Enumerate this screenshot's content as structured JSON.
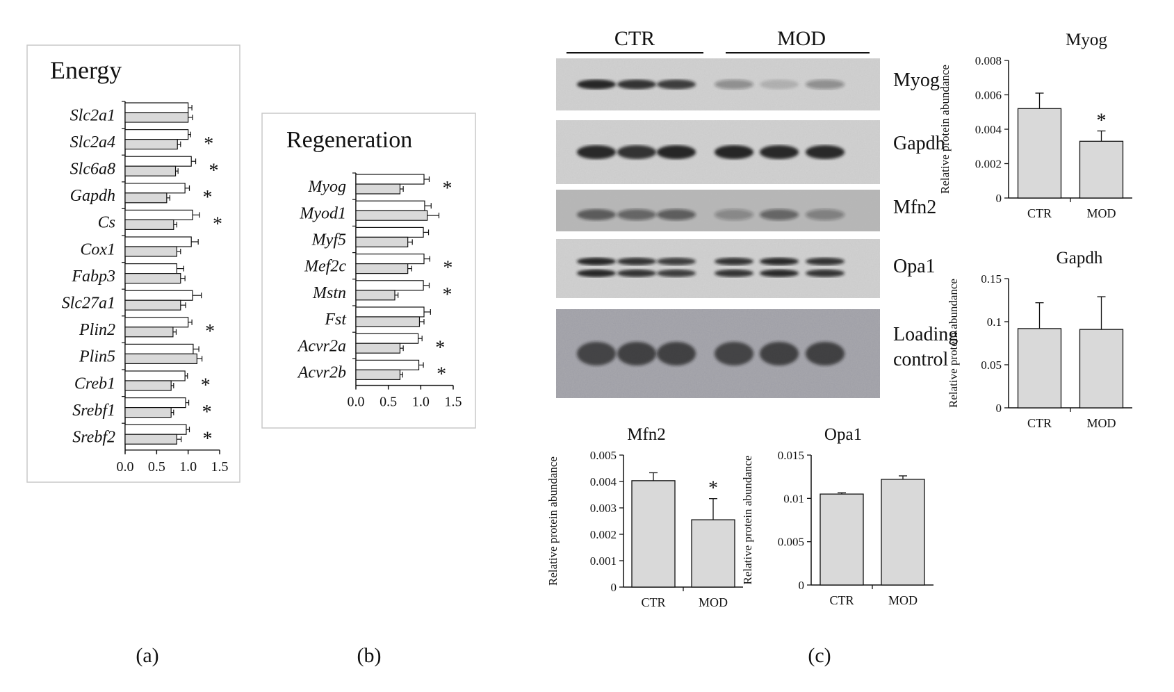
{
  "panel_labels": [
    "(a)",
    "(b)",
    "(c)"
  ],
  "chart_data": [
    {
      "id": "energy",
      "type": "bar",
      "orientation": "horizontal",
      "title": "Energy",
      "categories": [
        "Slc2a1",
        "Slc2a4",
        "Slc6a8",
        "Gapdh",
        "Cs",
        "Cox1",
        "Fabp3",
        "Slc27a1",
        "Plin2",
        "Plin5",
        "Creb1",
        "Srebf1",
        "Srebf2"
      ],
      "series": [
        {
          "color": "#ffffff",
          "values": [
            1.0,
            1.0,
            1.05,
            0.95,
            1.07,
            1.05,
            0.82,
            1.07,
            1.0,
            1.08,
            0.95,
            0.96,
            0.97
          ],
          "errors": [
            0.06,
            0.04,
            0.07,
            0.07,
            0.11,
            0.11,
            0.11,
            0.14,
            0.06,
            0.09,
            0.04,
            0.05,
            0.05
          ]
        },
        {
          "color": "#d9d9d9",
          "values": [
            1.0,
            0.83,
            0.8,
            0.66,
            0.77,
            0.82,
            0.88,
            0.88,
            0.76,
            1.14,
            0.73,
            0.73,
            0.82
          ],
          "errors": [
            0.07,
            0.05,
            0.04,
            0.05,
            0.05,
            0.06,
            0.07,
            0.08,
            0.05,
            0.08,
            0.04,
            0.04,
            0.07
          ]
        }
      ],
      "significant": [
        "",
        "*",
        "*",
        "*",
        "*",
        "",
        "",
        "",
        "*",
        "",
        "*",
        "*",
        "*"
      ],
      "xlim": [
        0,
        1.5
      ],
      "xticks": [
        "0.0",
        "0.5",
        "1.0",
        "1.5"
      ]
    },
    {
      "id": "regeneration",
      "type": "bar",
      "orientation": "horizontal",
      "title": "Regeneration",
      "categories": [
        "Myog",
        "Myod1",
        "Myf5",
        "Mef2c",
        "Mstn",
        "Fst",
        "Acvr2a",
        "Acvr2b"
      ],
      "series": [
        {
          "color": "#ffffff",
          "values": [
            1.05,
            1.06,
            1.04,
            1.05,
            1.04,
            1.05,
            0.96,
            0.97
          ],
          "errors": [
            0.08,
            0.1,
            0.08,
            0.09,
            0.09,
            0.1,
            0.06,
            0.07
          ]
        },
        {
          "color": "#d9d9d9",
          "values": [
            0.68,
            1.1,
            0.8,
            0.8,
            0.6,
            0.98,
            0.68,
            0.68
          ],
          "errors": [
            0.05,
            0.18,
            0.07,
            0.06,
            0.05,
            0.07,
            0.05,
            0.04
          ]
        }
      ],
      "significant": [
        "*",
        "",
        "",
        "*",
        "*",
        "",
        "*",
        "*"
      ],
      "xlim": [
        0,
        1.5
      ],
      "xticks": [
        "0.0",
        "0.5",
        "1.0",
        "1.5"
      ]
    },
    {
      "id": "myog",
      "type": "bar",
      "title": "Myog",
      "ylabel": "Relative protein abundance",
      "categories": [
        "CTR",
        "MOD"
      ],
      "values": [
        0.0052,
        0.0033
      ],
      "errors": [
        0.0009,
        0.0006
      ],
      "significant": [
        "",
        "*"
      ],
      "ylim": [
        0,
        0.008
      ],
      "yticks": [
        "0",
        "0.002",
        "0.004",
        "0.006",
        "0.008"
      ]
    },
    {
      "id": "gapdh",
      "type": "bar",
      "title": "Gapdh",
      "ylabel": "Relative protein abundance",
      "categories": [
        "CTR",
        "MOD"
      ],
      "values": [
        0.092,
        0.091
      ],
      "errors": [
        0.03,
        0.038
      ],
      "significant": [
        "",
        ""
      ],
      "ylim": [
        0,
        0.15
      ],
      "yticks": [
        "0",
        "0.05",
        "0.1",
        "0.15"
      ]
    },
    {
      "id": "mfn2",
      "type": "bar",
      "title": "Mfn2",
      "ylabel": "Relative protein abundance",
      "categories": [
        "CTR",
        "MOD"
      ],
      "values": [
        0.00403,
        0.00255
      ],
      "errors": [
        0.0003,
        0.0008
      ],
      "significant": [
        "",
        "*"
      ],
      "ylim": [
        0,
        0.005
      ],
      "yticks": [
        "0",
        "0.001",
        "0.002",
        "0.003",
        "0.004",
        "0.005"
      ]
    },
    {
      "id": "opa1",
      "type": "bar",
      "title": "Opa1",
      "ylabel": "Relative protein abundance",
      "categories": [
        "CTR",
        "MOD"
      ],
      "values": [
        0.0105,
        0.0122
      ],
      "errors": [
        0.00015,
        0.0004
      ],
      "significant": [
        "",
        ""
      ],
      "ylim": [
        0,
        0.015
      ],
      "yticks": [
        "0",
        "0.005",
        "0.01",
        "0.015"
      ]
    }
  ],
  "blot": {
    "groups": [
      "CTR",
      "MOD"
    ],
    "rows": [
      {
        "label": "Myog",
        "intensity": [
          0.95,
          0.85,
          0.8,
          0.35,
          0.15,
          0.35
        ]
      },
      {
        "label": "Gapdh",
        "intensity": [
          0.9,
          0.85,
          0.95,
          0.95,
          0.9,
          0.9
        ]
      },
      {
        "label": "Mfn2",
        "intensity": [
          0.6,
          0.5,
          0.55,
          0.3,
          0.5,
          0.35
        ]
      },
      {
        "label": "Opa1",
        "intensity": [
          0.95,
          0.85,
          0.8,
          0.85,
          0.9,
          0.85
        ]
      },
      {
        "label": "Loading control",
        "intensity": [
          0.7,
          0.72,
          0.72,
          0.7,
          0.72,
          0.72
        ]
      }
    ]
  }
}
